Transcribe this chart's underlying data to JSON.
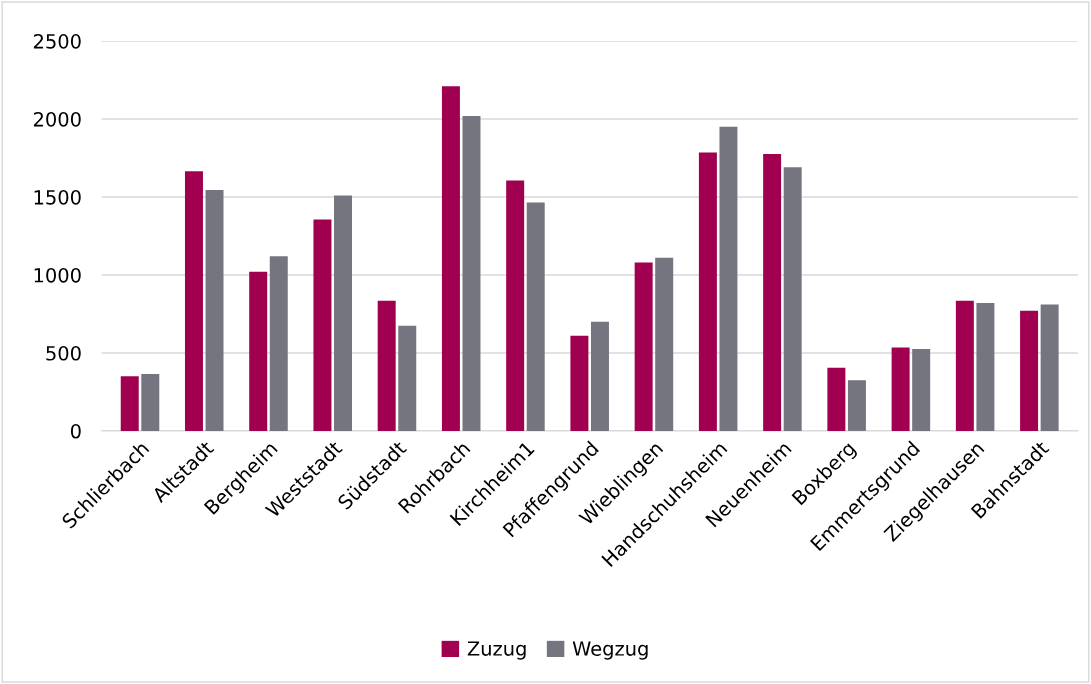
{
  "chart_data": {
    "type": "bar",
    "categories": [
      "Schlierbach",
      "Altstadt",
      "Bergheim",
      "Weststadt",
      "Südstadt",
      "Rohrbach",
      "Kirchheim1",
      "Pfaffengrund",
      "Wieblingen",
      "Handschuhsheim",
      "Neuenheim",
      "Boxberg",
      "Emmertsgrund",
      "Ziegelhausen",
      "Bahnstadt"
    ],
    "series": [
      {
        "name": "Zuzug",
        "color": "#a0004f",
        "values": [
          350,
          1665,
          1020,
          1355,
          835,
          2210,
          1605,
          610,
          1080,
          1785,
          1775,
          405,
          535,
          835,
          770
        ]
      },
      {
        "name": "Wegzug",
        "color": "#75757f",
        "values": [
          365,
          1545,
          1120,
          1510,
          675,
          2020,
          1465,
          700,
          1110,
          1950,
          1690,
          325,
          525,
          820,
          810
        ]
      }
    ],
    "ylim": [
      0,
      2500
    ],
    "yticks": [
      0,
      500,
      1000,
      1500,
      2000,
      2500
    ],
    "grid": "y",
    "legend": "bottom"
  }
}
